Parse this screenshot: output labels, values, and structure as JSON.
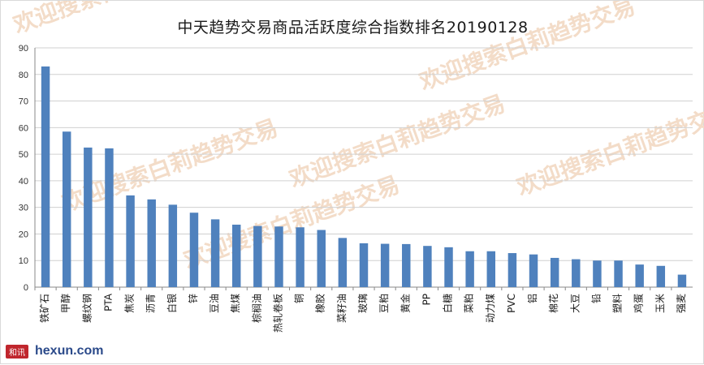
{
  "chart_data": {
    "type": "bar",
    "title": "中天趋势交易商品活跃度综合指数排名20190128",
    "categories": [
      "铁矿石",
      "甲醇",
      "螺纹钢",
      "PTA",
      "焦炭",
      "沥青",
      "白银",
      "锌",
      "豆油",
      "焦煤",
      "棕榈油",
      "热轧卷板",
      "铜",
      "橡胶",
      "菜籽油",
      "玻璃",
      "豆粕",
      "黄金",
      "PP",
      "白糖",
      "菜粕",
      "动力煤",
      "PVC",
      "铝",
      "棉花",
      "大豆",
      "铅",
      "塑料",
      "鸡蛋",
      "玉米",
      "强麦"
    ],
    "values": [
      83,
      58.5,
      52.5,
      52.2,
      34.5,
      33,
      31,
      28,
      25.5,
      23.5,
      23,
      22.8,
      22.5,
      21.5,
      18.5,
      16.5,
      16.3,
      16.2,
      15.5,
      15,
      13.5,
      13.5,
      12.8,
      12.3,
      11,
      10.5,
      10,
      10,
      8.5,
      8,
      4.7
    ],
    "ylim": [
      0,
      90
    ],
    "yticks": [
      0,
      10,
      20,
      30,
      40,
      50,
      60,
      70,
      80,
      90
    ],
    "grid": true,
    "bar_color": "#4f81bd"
  },
  "watermark": "欢迎搜索白莉趋势交易",
  "footer": {
    "logo_badge": "和讯",
    "logo_text": "hexun.com"
  }
}
